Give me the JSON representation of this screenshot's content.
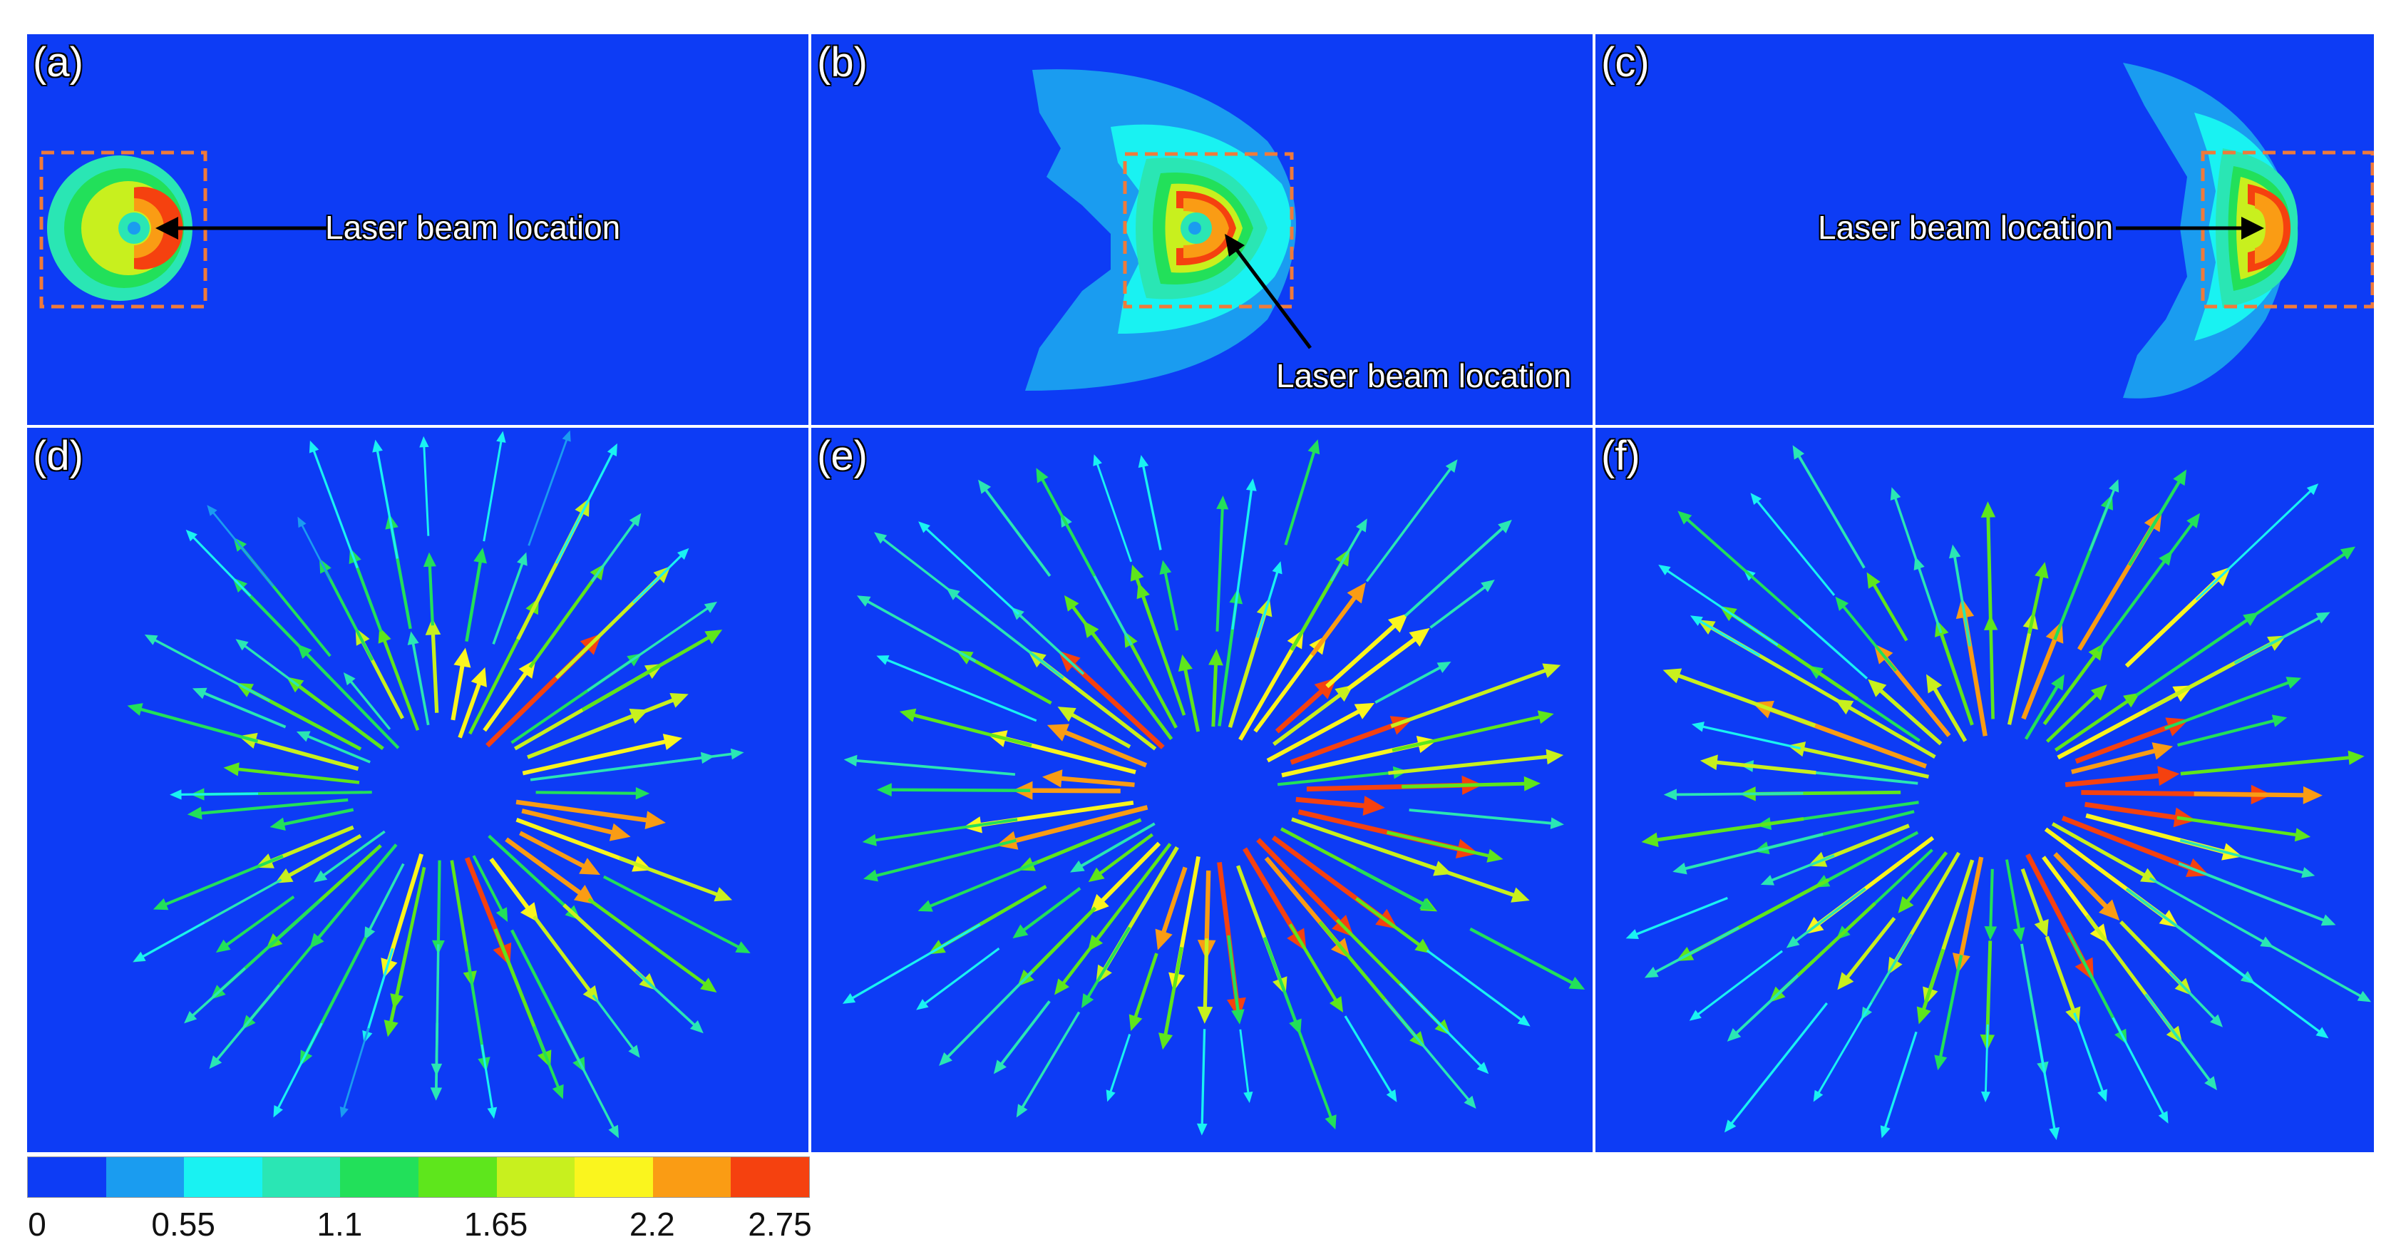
{
  "panels": [
    {
      "label": "(a)",
      "annotation": "Laser beam location"
    },
    {
      "label": "(b)",
      "annotation": "Laser beam location"
    },
    {
      "label": "(c)",
      "annotation": "Laser beam location"
    },
    {
      "label": "(d)"
    },
    {
      "label": "(e)"
    },
    {
      "label": "(f)"
    }
  ],
  "colorbar": {
    "colors": [
      "#0d3cf5",
      "#1a9cf0",
      "#19f2f2",
      "#2ae6b4",
      "#22e05a",
      "#5ee61c",
      "#c8f01e",
      "#faf51e",
      "#fa9c14",
      "#f5410f"
    ],
    "ticks": [
      "0",
      "0.55",
      "1.1",
      "1.65",
      "2.2",
      "2.75"
    ],
    "range": [
      0,
      2.75
    ]
  }
}
